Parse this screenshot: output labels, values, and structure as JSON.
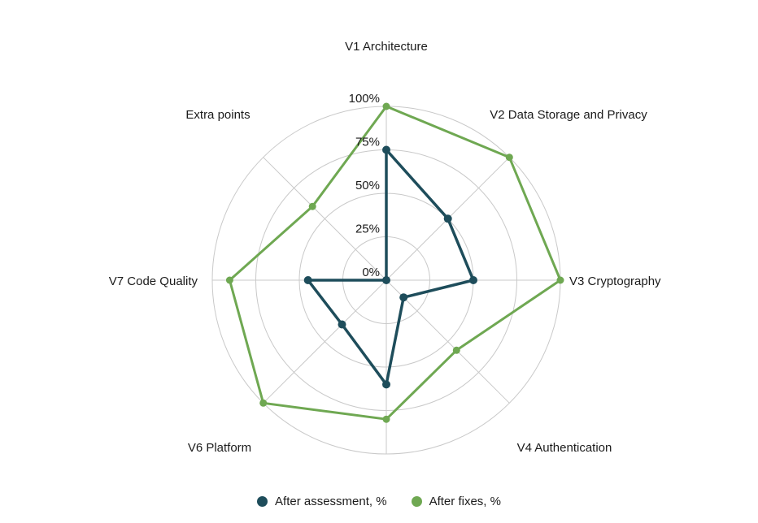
{
  "chart_data": {
    "type": "radar",
    "categories": [
      "V1 Architecture",
      "V2 Data Storage and Privacy",
      "V3 Cryptography",
      "V4 Authentication",
      "",
      "V6 Platform",
      "V7 Code Quality",
      "Extra points"
    ],
    "series": [
      {
        "name": "After assessment, %",
        "color": "#1e4d5b",
        "values": [
          75,
          50,
          50,
          14,
          60,
          36,
          45,
          0
        ]
      },
      {
        "name": "After fixes, %",
        "color": "#6fa852",
        "values": [
          100,
          100,
          100,
          57,
          80,
          100,
          90,
          60
        ]
      }
    ],
    "radial_ticks": [
      "0%",
      "25%",
      "50%",
      "75%",
      "100%"
    ],
    "rlim": [
      0,
      100
    ],
    "grid": true,
    "legend_position": "bottom",
    "title": ""
  },
  "colors": {
    "background": "#ffffff",
    "grid": "#c9c9c9",
    "text": "#1b1b1b"
  }
}
